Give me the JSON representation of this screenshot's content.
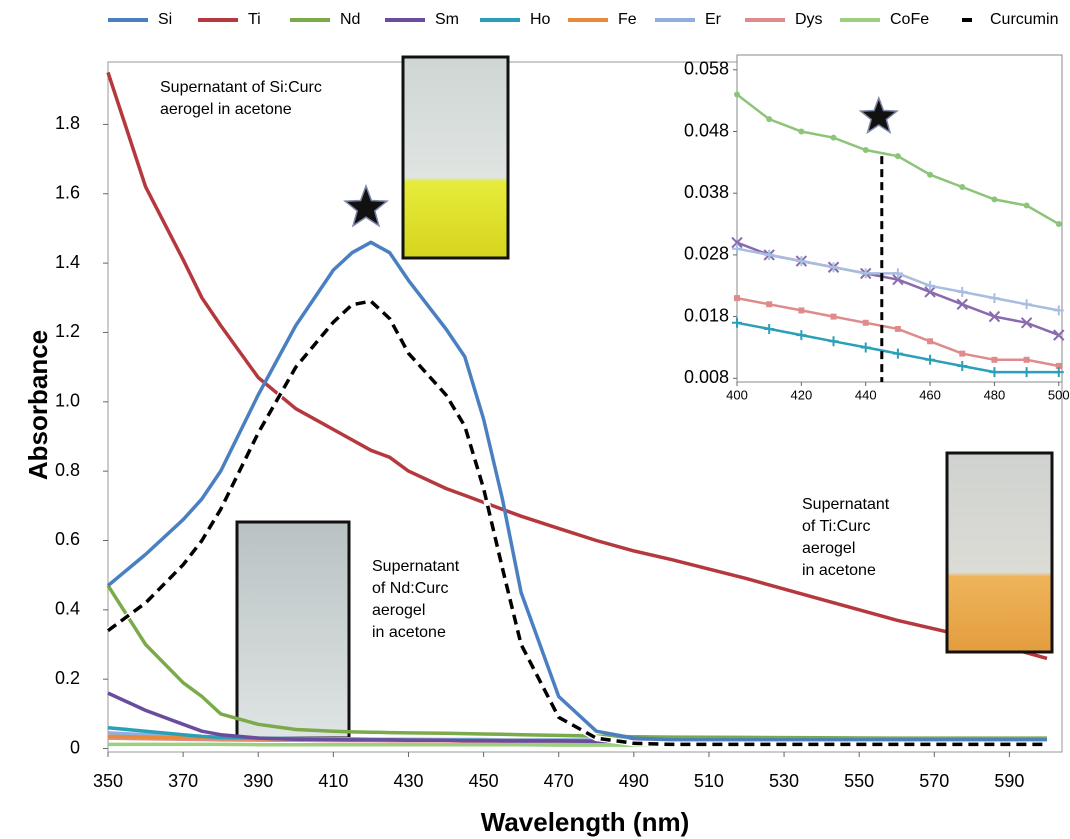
{
  "chart_data": [
    {
      "type": "line",
      "x_label": "Wavelength (nm)",
      "y_label": "Absorbance",
      "xlim": [
        350,
        604
      ],
      "ylim": [
        -0.01,
        1.98
      ],
      "xticks": [
        350,
        370,
        390,
        410,
        430,
        450,
        470,
        490,
        510,
        530,
        550,
        570,
        590
      ],
      "yticks": [
        0,
        0.2,
        0.4,
        0.6,
        0.8,
        {
          "value": 1,
          "label": "1.0"
        },
        1.2,
        1.4,
        1.6,
        1.8
      ],
      "x": [
        350,
        360,
        370,
        375,
        380,
        390,
        400,
        410,
        415,
        420,
        425,
        430,
        440,
        445,
        450,
        455,
        460,
        470,
        480,
        490,
        500,
        520,
        540,
        560,
        580,
        600
      ],
      "series": [
        {
          "name": "Si",
          "color": "#4a7fc1",
          "values": [
            0.47,
            0.56,
            0.66,
            0.72,
            0.8,
            1.02,
            1.22,
            1.38,
            1.43,
            1.46,
            1.43,
            1.35,
            1.21,
            1.13,
            0.95,
            0.72,
            0.45,
            0.15,
            0.05,
            0.03,
            0.025,
            0.025,
            0.025,
            0.025,
            0.025,
            0.025
          ]
        },
        {
          "name": "Ti",
          "color": "#b5383f",
          "values": [
            1.95,
            1.62,
            1.41,
            1.3,
            1.22,
            1.07,
            0.98,
            0.92,
            0.89,
            0.86,
            0.84,
            0.8,
            0.75,
            0.73,
            0.71,
            0.69,
            0.67,
            0.635,
            0.6,
            0.57,
            0.545,
            0.49,
            0.43,
            0.37,
            0.32,
            0.26
          ]
        },
        {
          "name": "Nd",
          "color": "#7aaa4a",
          "values": [
            0.47,
            0.3,
            0.19,
            0.15,
            0.1,
            0.07,
            0.055,
            0.05,
            0.048,
            0.047,
            0.046,
            0.045,
            0.044,
            0.043,
            0.042,
            0.041,
            0.04,
            0.038,
            0.036,
            0.034,
            0.033,
            0.032,
            0.031,
            0.03,
            0.03,
            0.03
          ]
        },
        {
          "name": "Sm",
          "color": "#6a4c9c",
          "values": [
            0.16,
            0.11,
            0.07,
            0.05,
            0.04,
            0.03,
            0.027,
            0.026,
            0.025,
            0.025,
            0.025,
            0.024,
            0.024,
            0.023,
            0.023,
            0.022,
            0.022,
            0.022,
            0.021,
            0.021,
            0.02,
            0.02,
            0.02,
            0.02,
            0.02,
            0.02
          ]
        },
        {
          "name": "Ho",
          "color": "#2aa0b8",
          "values": [
            0.06,
            0.05,
            0.04,
            0.035,
            0.032,
            0.03,
            0.028,
            0.027,
            0.026,
            0.026,
            0.025,
            0.025,
            0.024,
            0.024,
            0.023,
            0.023,
            0.022,
            0.022,
            0.021,
            0.021,
            0.02,
            0.02,
            0.02,
            0.02,
            0.02,
            0.02
          ]
        },
        {
          "name": "Fe",
          "color": "#e88a3a",
          "values": [
            0.035,
            0.033,
            0.031,
            0.03,
            0.029,
            0.028,
            0.027,
            0.026,
            0.026,
            0.025,
            0.025,
            0.025,
            0.024,
            0.024,
            0.023,
            0.023,
            0.023,
            0.022,
            0.022,
            0.021,
            0.021,
            0.021,
            0.02,
            0.02,
            0.02,
            0.02
          ]
        },
        {
          "name": "Er",
          "color": "#8fb0dc",
          "values": [
            0.045,
            0.04,
            0.036,
            0.034,
            0.032,
            0.03,
            0.029,
            0.028,
            0.028,
            0.027,
            0.027,
            0.027,
            0.026,
            0.026,
            0.026,
            0.025,
            0.025,
            0.025,
            0.025,
            0.025,
            0.025,
            0.025,
            0.025,
            0.025,
            0.025,
            0.025
          ]
        },
        {
          "name": "Dys",
          "color": "#e08b8b",
          "values": [
            0.03,
            0.028,
            0.027,
            0.026,
            0.025,
            0.024,
            0.024,
            0.023,
            0.023,
            0.023,
            0.022,
            0.022,
            0.022,
            0.021,
            0.021,
            0.021,
            0.021,
            0.02,
            0.02,
            0.02,
            0.02,
            0.02,
            0.02,
            0.02,
            0.02,
            0.02
          ]
        },
        {
          "name": "CoFe",
          "color": "#9ccf7f",
          "values": [
            0.012,
            0.012,
            0.012,
            0.012,
            0.012,
            0.011,
            0.011,
            0.011,
            0.011,
            0.011,
            0.011,
            0.011,
            0.011,
            0.011,
            0.011,
            0.011,
            0.011,
            0.01,
            0.01,
            0.01,
            0.01,
            0.01,
            0.01,
            0.01,
            0.01,
            0.01
          ]
        },
        {
          "name": "Curcumin",
          "color": "#000000",
          "dash": true,
          "values": [
            0.34,
            0.42,
            0.53,
            0.6,
            0.69,
            0.91,
            1.1,
            1.23,
            1.28,
            1.29,
            1.24,
            1.14,
            1.02,
            0.93,
            0.75,
            0.52,
            0.3,
            0.09,
            0.03,
            0.015,
            0.012,
            0.012,
            0.012,
            0.012,
            0.012,
            0.012
          ]
        }
      ],
      "annotations": [
        [
          "Supernatant of Si:Curc",
          "aerogel in acetone"
        ],
        [
          "Supernatant",
          "of Nd:Curc",
          "aerogel",
          "in acetone"
        ],
        [
          "Supernatant",
          "of Ti:Curc",
          "aerogel",
          "in acetone"
        ]
      ]
    },
    {
      "type": "scatter",
      "xlim": [
        400,
        501
      ],
      "ylim": [
        0.0074,
        0.0604
      ],
      "xticks": [
        400,
        420,
        440,
        460,
        480,
        500
      ],
      "yticks": [
        0.008,
        0.018,
        0.028,
        0.038,
        0.048,
        0.058
      ],
      "x": [
        400,
        410,
        420,
        430,
        440,
        450,
        460,
        470,
        480,
        490,
        500
      ],
      "series": [
        {
          "color": "#8cc47a",
          "marker": "circle",
          "values": [
            0.054,
            0.05,
            0.048,
            0.047,
            0.045,
            0.044,
            0.041,
            0.039,
            0.037,
            0.036,
            0.033
          ]
        },
        {
          "color": "#8a6aae",
          "marker": "x",
          "values": [
            0.03,
            0.028,
            0.027,
            0.026,
            0.025,
            0.024,
            0.022,
            0.02,
            0.018,
            0.017,
            0.015
          ]
        },
        {
          "color": "#a9bde0",
          "marker": "plus",
          "values": [
            0.029,
            0.028,
            0.027,
            0.026,
            0.025,
            0.025,
            0.023,
            0.022,
            0.021,
            0.02,
            0.019
          ]
        },
        {
          "color": "#e08b8b",
          "marker": "square",
          "values": [
            0.021,
            0.02,
            0.019,
            0.018,
            0.017,
            0.016,
            0.014,
            0.012,
            0.011,
            0.011,
            0.01
          ]
        },
        {
          "color": "#2aa0b8",
          "marker": "plus",
          "values": [
            0.017,
            0.016,
            0.015,
            0.014,
            0.013,
            0.012,
            0.011,
            0.01,
            0.009,
            0.009,
            0.009
          ]
        }
      ],
      "marker_line": {
        "x": 445,
        "y": 0.044
      }
    }
  ]
}
